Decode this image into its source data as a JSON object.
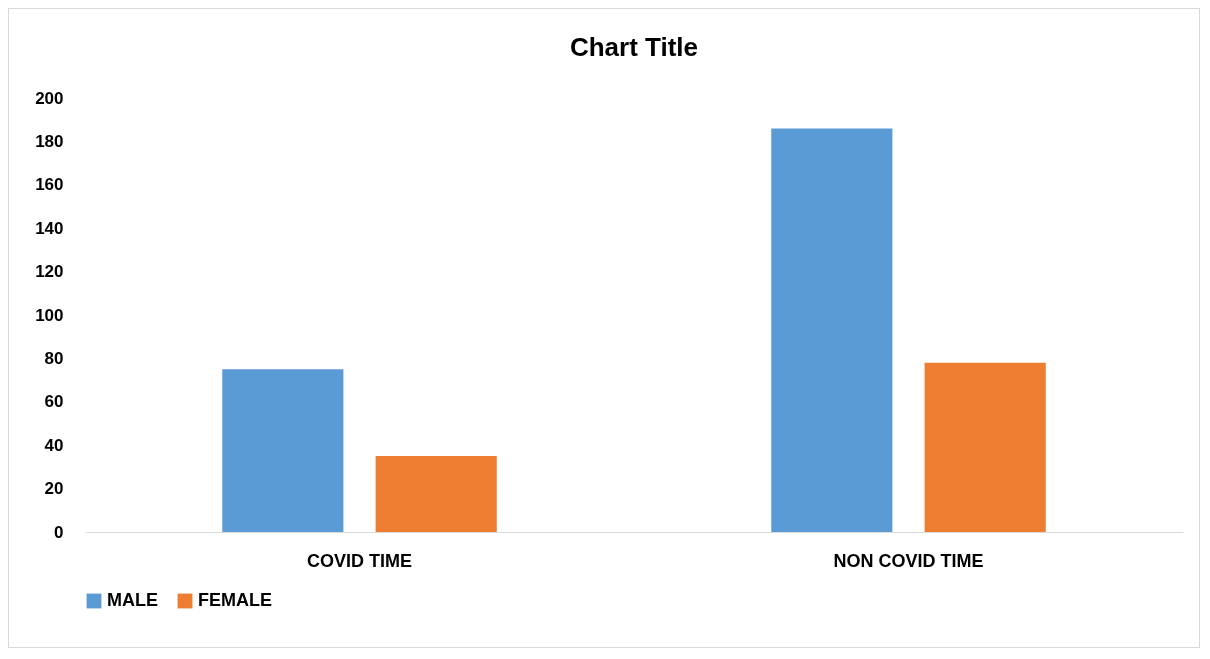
{
  "chart_data": {
    "type": "bar",
    "title": "Chart Title",
    "categories": [
      "COVID TIME",
      "NON COVID TIME"
    ],
    "series": [
      {
        "name": "MALE",
        "color": "#5b9bd5",
        "values": [
          75,
          186
        ]
      },
      {
        "name": "FEMALE",
        "color": "#ed7d31",
        "values": [
          35,
          78
        ]
      }
    ],
    "ylim": [
      0,
      200
    ],
    "yticks": [
      0,
      20,
      40,
      60,
      80,
      100,
      120,
      140,
      160,
      180,
      200
    ],
    "grid": false,
    "legend": "bottom"
  }
}
